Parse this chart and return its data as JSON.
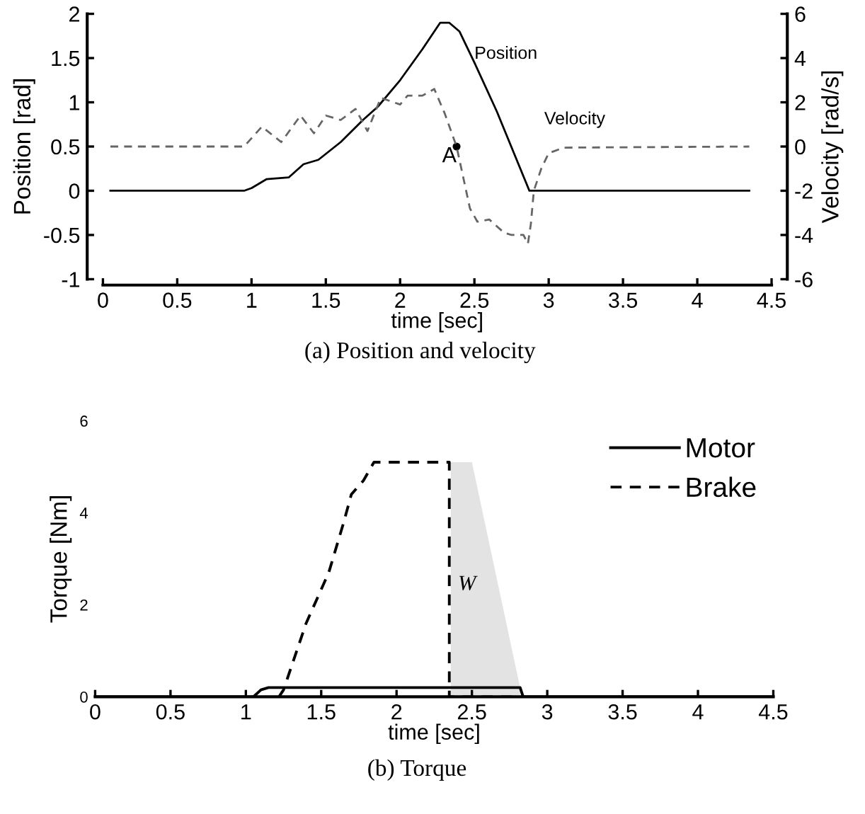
{
  "chart_data": [
    {
      "type": "line",
      "title": "(a) Position and velocity",
      "xlabel": "time [sec]",
      "ylabel": "Position [rad]",
      "y2label": "Velocity [rad/s]",
      "xlim": [
        0,
        4.5
      ],
      "xticks": [
        0,
        0.5,
        1,
        1.5,
        2,
        2.5,
        3,
        3.5,
        4,
        4.5
      ],
      "ylim": [
        -1,
        2
      ],
      "yticks": [
        -1,
        -0.5,
        0,
        0.5,
        1,
        1.5,
        2
      ],
      "y2lim": [
        -6,
        6
      ],
      "y2ticks": [
        -6,
        -4,
        -2,
        0,
        2,
        4,
        6
      ],
      "grid": false,
      "legend": false,
      "marker": "none",
      "series": [
        {
          "color": "#000000",
          "line_style": "solid",
          "x": [
            0.05,
            0.95,
            1.0,
            1.1,
            1.25,
            1.35,
            1.45,
            1.6,
            1.75,
            1.85,
            2.0,
            2.15,
            2.27,
            2.33,
            2.4,
            2.5,
            2.65,
            2.87,
            4.35
          ],
          "values": [
            0,
            0,
            0.03,
            0.13,
            0.15,
            0.3,
            0.35,
            0.55,
            0.8,
            0.95,
            1.25,
            1.6,
            1.9,
            1.9,
            1.8,
            1.45,
            0.9,
            0,
            0
          ]
        },
        {
          "color": "#666666",
          "line_style": "dashed",
          "axis": "y2",
          "x": [
            0.05,
            0.95,
            1.07,
            1.2,
            1.33,
            1.42,
            1.5,
            1.6,
            1.7,
            1.78,
            1.87,
            2.0,
            2.05,
            2.15,
            2.23,
            2.3,
            2.38,
            2.47,
            2.52,
            2.6,
            2.7,
            2.75,
            2.83,
            2.86,
            2.88,
            2.9,
            2.95,
            3.0,
            3.1,
            4.35
          ],
          "values": [
            0,
            0,
            0.9,
            0.2,
            1.4,
            0.6,
            1.4,
            1.2,
            1.7,
            0.7,
            2.2,
            1.9,
            2.3,
            2.3,
            2.6,
            1.5,
            0,
            -2.8,
            -3.4,
            -3.3,
            -3.9,
            -4.0,
            -4.0,
            -4.4,
            -3.5,
            -2,
            -1.0,
            -0.3,
            -0.05,
            0
          ]
        }
      ],
      "annotations": [
        {
          "text": "Position",
          "x": 2.5,
          "y": 1.45
        },
        "Velocity",
        {
          "text": "A",
          "x": 2.38,
          "y": 0.5
        }
      ]
    },
    {
      "type": "line",
      "title": "(b) Torque",
      "xlabel": "time [sec]",
      "ylabel": "Torque [Nm]",
      "xlim": [
        0,
        4.5
      ],
      "xticks": [
        0,
        0.5,
        1,
        1.5,
        2,
        2.5,
        3,
        3.5,
        4,
        4.5
      ],
      "ylim": [
        0,
        6
      ],
      "yticks": [
        0,
        2,
        4,
        6
      ],
      "grid": false,
      "legend": "top right",
      "marker": "none",
      "series": [
        {
          "type": "area",
          "color": "#e3e3e3",
          "x": [
            2.36,
            2.5,
            2.82
          ],
          "values": [
            5.1,
            5.1,
            0.2
          ]
        },
        {
          "name": "Motor",
          "color": "#000000",
          "line_style": "solid",
          "x": [
            0,
            1.05,
            1.1,
            1.15,
            2.82,
            2.84,
            4.5
          ],
          "values": [
            0,
            0,
            0.15,
            0.2,
            0.2,
            0,
            0
          ]
        },
        {
          "name": "Brake",
          "color": "#000000",
          "line_style": "dashed",
          "x": [
            1.22,
            1.25,
            1.4,
            1.55,
            1.65,
            1.7,
            1.78,
            1.85,
            2.35,
            2.35,
            2.85
          ],
          "values": [
            0,
            0.15,
            1.6,
            2.7,
            3.8,
            4.4,
            4.7,
            5.1,
            5.1,
            0,
            0
          ]
        }
      ],
      "annotations": [
        "W"
      ]
    }
  ]
}
